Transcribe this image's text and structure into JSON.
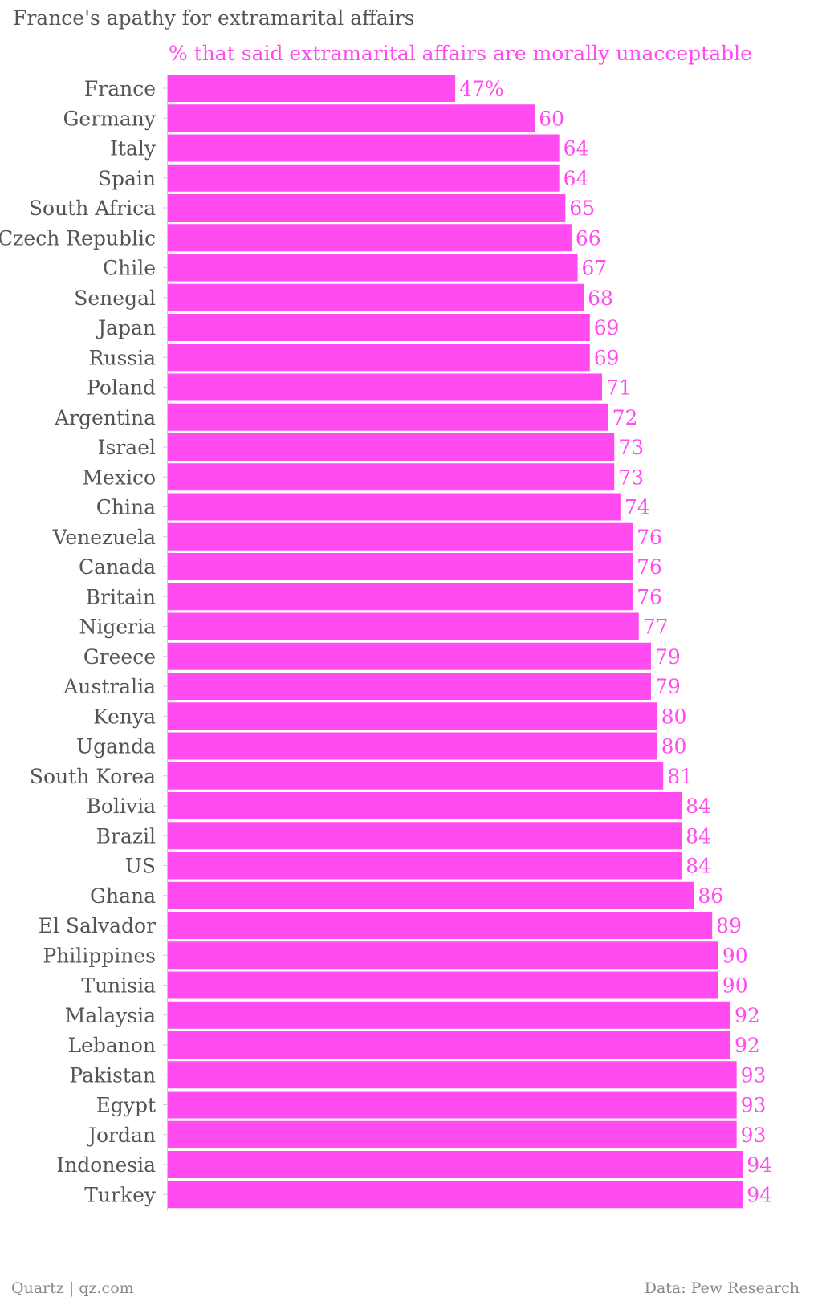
{
  "title": "France's apathy for extramarital affairs",
  "footer": {
    "left": "Quartz | qz.com",
    "right": "Data: Pew Research"
  },
  "colors": {
    "bar": "#ff4bef",
    "label_text": "#ff4bef",
    "category_text": "#555555",
    "axis": "#cccccc"
  },
  "chart_data": {
    "type": "bar",
    "orientation": "horizontal",
    "title": "France's apathy for extramarital affairs",
    "xlim": [
      0,
      94
    ],
    "series": [
      {
        "name": "% that said extramarital affairs are morally unacceptable",
        "values": [
          47,
          60,
          64,
          64,
          65,
          66,
          67,
          68,
          69,
          69,
          71,
          72,
          73,
          73,
          74,
          76,
          76,
          76,
          77,
          79,
          79,
          80,
          80,
          81,
          84,
          84,
          84,
          86,
          89,
          90,
          90,
          92,
          92,
          93,
          93,
          93,
          94,
          94
        ]
      }
    ],
    "categories": [
      "France",
      "Germany",
      "Italy",
      "Spain",
      "South Africa",
      "Czech Republic",
      "Chile",
      "Senegal",
      "Japan",
      "Russia",
      "Poland",
      "Argentina",
      "Israel",
      "Mexico",
      "China",
      "Venezuela",
      "Canada",
      "Britain",
      "Nigeria",
      "Greece",
      "Australia",
      "Kenya",
      "Uganda",
      "South Korea",
      "Bolivia",
      "Brazil",
      "US",
      "Ghana",
      "El Salvador",
      "Philippines",
      "Tunisia",
      "Malaysia",
      "Lebanon",
      "Pakistan",
      "Egypt",
      "Jordan",
      "Indonesia",
      "Turkey"
    ],
    "value_labels": [
      "47%",
      "60",
      "64",
      "64",
      "65",
      "66",
      "67",
      "68",
      "69",
      "69",
      "71",
      "72",
      "73",
      "73",
      "74",
      "76",
      "76",
      "76",
      "77",
      "79",
      "79",
      "80",
      "80",
      "81",
      "84",
      "84",
      "84",
      "86",
      "89",
      "90",
      "90",
      "92",
      "92",
      "93",
      "93",
      "93",
      "94",
      "94"
    ],
    "legend": "top",
    "grid": false
  }
}
